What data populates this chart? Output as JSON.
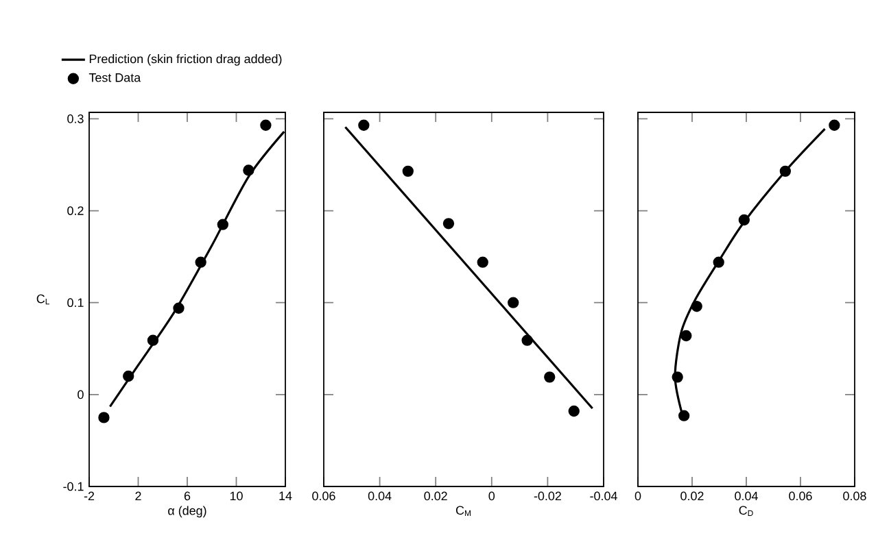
{
  "chart_data": [
    {
      "type": "line",
      "xlabel": "α (deg)",
      "ylabel": "C$_{L}$",
      "xlim": [
        -2,
        14
      ],
      "ylim": [
        -0.1,
        0.307
      ],
      "xticks": [
        -2,
        2,
        6,
        10,
        14
      ],
      "yticks": [
        -0.1,
        0,
        0.1,
        0.2,
        0.3
      ],
      "legend": "top left",
      "grid": false,
      "series": [
        {
          "name": "Prediction (skin friction drag added)",
          "color": "#000000",
          "marker": "none",
          "line_style": "solid",
          "x": [
            -0.3,
            2,
            5,
            8,
            11,
            13.9
          ],
          "values": [
            -0.013,
            0.032,
            0.091,
            0.162,
            0.237,
            0.286
          ]
        },
        {
          "name": "Test Data",
          "type": "scatter",
          "color": "#000000",
          "marker": "circle",
          "x": [
            -0.8,
            1.2,
            3.2,
            5.3,
            7.1,
            8.9,
            11,
            12.4
          ],
          "values": [
            -0.025,
            0.02,
            0.059,
            0.094,
            0.144,
            0.185,
            0.244,
            0.293
          ]
        }
      ]
    },
    {
      "type": "line",
      "xlabel": "C$_{M}$",
      "xlim": [
        0.06,
        -0.04
      ],
      "ylim": [
        -0.1,
        0.307
      ],
      "xticks": [
        0.06,
        0.04,
        0.02,
        0,
        -0.02,
        -0.04
      ],
      "yticks": [
        -0.1,
        0,
        0.1,
        0.2,
        0.3
      ],
      "tick_labels": "x",
      "grid": false,
      "series": [
        {
          "color": "#000000",
          "marker": "none",
          "line_style": "solid",
          "x": [
            0.0523,
            -0.036
          ],
          "values": [
            0.291,
            -0.015
          ]
        },
        {
          "type": "scatter",
          "color": "#000000",
          "marker": "circle",
          "x": [
            0.0457,
            0.0299,
            0.0154,
            0.0032,
            -0.0077,
            -0.0127,
            -0.0207,
            -0.0294
          ],
          "values": [
            0.293,
            0.243,
            0.186,
            0.144,
            0.1,
            0.059,
            0.019,
            -0.018
          ]
        }
      ]
    },
    {
      "type": "line",
      "xlabel": "C$_{D}$",
      "xlim": [
        0,
        0.08
      ],
      "ylim": [
        -0.1,
        0.307
      ],
      "xticks": [
        0,
        0.02,
        0.04,
        0.06,
        0.08
      ],
      "yticks": [
        -0.1,
        0,
        0.1,
        0.2,
        0.3
      ],
      "tick_labels": "x",
      "grid": false,
      "series": [
        {
          "color": "#000000",
          "marker": "none",
          "line_style": "solid",
          "x": [
            0.0165,
            0.0137,
            0.016,
            0.0213,
            0.03,
            0.039,
            0.0547,
            0.069
          ],
          "values": [
            -0.023,
            0.019,
            0.068,
            0.104,
            0.146,
            0.187,
            0.244,
            0.289
          ]
        },
        {
          "type": "scatter",
          "color": "#000000",
          "marker": "circle",
          "x": [
            0.0725,
            0.0544,
            0.0392,
            0.0298,
            0.0217,
            0.0178,
            0.0146,
            0.017
          ],
          "values": [
            0.293,
            0.243,
            0.19,
            0.144,
            0.096,
            0.064,
            0.019,
            -0.023
          ]
        }
      ]
    }
  ]
}
